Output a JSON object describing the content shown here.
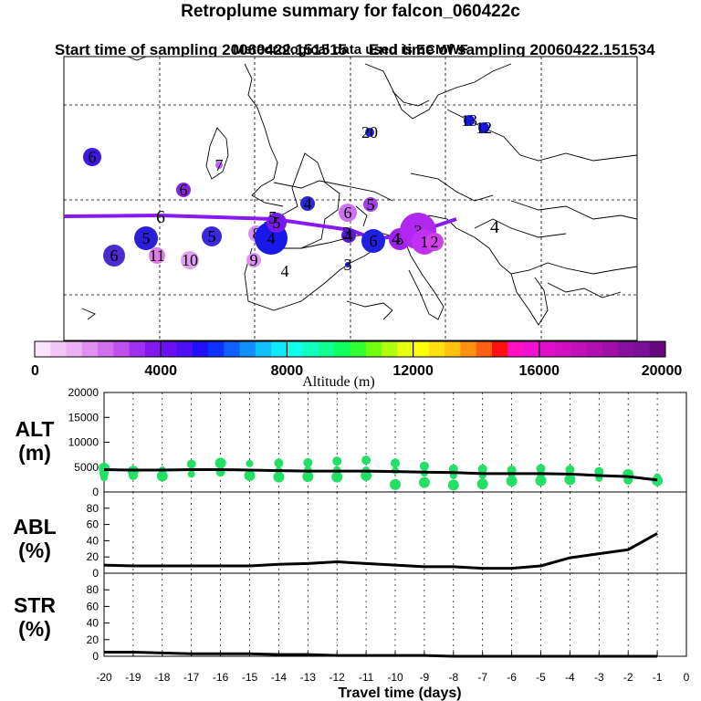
{
  "title": "Retroplume summary for falcon_060422c",
  "subtitle_start": "Start time of sampling 20060422.151515",
  "subtitle_end": "End time of sampling 20060422.151534",
  "subtitle_met": "Meteorological data used is ECMWF",
  "map": {
    "labels": [
      {
        "t": "6",
        "c": "#3d16e0"
      },
      {
        "t": "7",
        "c": "#c060ff"
      },
      {
        "t": "6",
        "c": "#8a20e0"
      },
      {
        "t": "6",
        "c": "#4b2ad0"
      },
      {
        "t": "5",
        "c": "#2a20d8"
      },
      {
        "t": "5",
        "c": "#3b28dc"
      },
      {
        "t": "11",
        "c": "#e07ae8"
      },
      {
        "t": "10",
        "c": "#e0a0f0"
      },
      {
        "t": "8",
        "c": "#d890f0"
      },
      {
        "t": "9",
        "c": "#e090f0"
      },
      {
        "t": "4",
        "c": "#1818e8"
      },
      {
        "t": "5",
        "c": "#7a18f0"
      },
      {
        "t": "4",
        "c": "#2828d8"
      },
      {
        "t": "6",
        "c": "#d070f0"
      },
      {
        "t": "5",
        "c": "#a040e0"
      },
      {
        "t": "6",
        "c": "#2020e0"
      },
      {
        "t": "4",
        "c": "#5a18d8"
      },
      {
        "t": "3",
        "c": "#2020d0"
      },
      {
        "t": "3",
        "c": "#a020f0"
      },
      {
        "t": "3",
        "c": "#b028f0"
      },
      {
        "t": "1",
        "c": "#c030f0"
      },
      {
        "t": "2",
        "c": "#d040e8"
      },
      {
        "t": "4",
        "c": "#ffffff"
      },
      {
        "t": "20",
        "c": "#2020d0"
      },
      {
        "t": "13",
        "c": "#1818e0"
      },
      {
        "t": "12",
        "c": "#1818e0"
      }
    ],
    "plain_labels": [
      "6",
      "5",
      "4",
      "3",
      "4"
    ]
  },
  "colorbar": {
    "ticks": [
      "0",
      "4000",
      "8000",
      "12000",
      "16000",
      "20000"
    ],
    "xlabel": "Altitude (m)",
    "colors": [
      "#fbe3fb",
      "#f3c8f6",
      "#eab0f2",
      "#e090f0",
      "#d070ee",
      "#c050ec",
      "#a030f0",
      "#8418f0",
      "#6a10f0",
      "#4c10f4",
      "#2010f8",
      "#1030ff",
      "#1060ff",
      "#1090ff",
      "#10c0ff",
      "#10e8ff",
      "#10ffe8",
      "#10ffc0",
      "#10ff90",
      "#10ff60",
      "#30ff30",
      "#70ff10",
      "#b0ff10",
      "#e8ff10",
      "#ffff10",
      "#ffe010",
      "#ffc010",
      "#ff9010",
      "#ff6010",
      "#ff1010",
      "#ff10c0",
      "#f010d0",
      "#e010c8",
      "#d010c0",
      "#c010b8",
      "#b010b0",
      "#a010a8",
      "#8810a0",
      "#781098",
      "#680880"
    ]
  },
  "chart_data": [
    {
      "type": "line",
      "panel_label": "ALT\n(m)",
      "x": [
        -20,
        -19,
        -18,
        -17,
        -16,
        -15,
        -14,
        -13,
        -12,
        -11,
        -10,
        -9,
        -8,
        -7,
        -6,
        -5,
        -4,
        -3,
        -2,
        -1
      ],
      "y": [
        4500,
        4400,
        4400,
        4500,
        4500,
        4400,
        4300,
        4200,
        4200,
        4200,
        4100,
        4000,
        3900,
        3700,
        3700,
        3700,
        3600,
        3300,
        3100,
        2400
      ],
      "ylim": [
        0,
        20000
      ],
      "yticks": [
        "0",
        "5000",
        "10000",
        "15000",
        "20000"
      ],
      "plume_points": [
        [
          -20,
          4800
        ],
        [
          -20,
          3700
        ],
        [
          -20,
          2900
        ],
        [
          -19,
          4200
        ],
        [
          -19,
          3300
        ],
        [
          -18,
          4400
        ],
        [
          -18,
          3200
        ],
        [
          -17,
          5600
        ],
        [
          -17,
          3600
        ],
        [
          -16,
          5800
        ],
        [
          -16,
          4000
        ],
        [
          -15,
          5700
        ],
        [
          -15,
          3300
        ],
        [
          -14,
          5800
        ],
        [
          -14,
          4300
        ],
        [
          -14,
          3000
        ],
        [
          -13,
          5900
        ],
        [
          -13,
          4500
        ],
        [
          -13,
          3100
        ],
        [
          -12,
          6200
        ],
        [
          -12,
          4500
        ],
        [
          -12,
          3000
        ],
        [
          -11,
          6400
        ],
        [
          -11,
          4400
        ],
        [
          -11,
          3300
        ],
        [
          -10,
          5800
        ],
        [
          -10,
          4300
        ],
        [
          -10,
          1500
        ],
        [
          -9,
          5200
        ],
        [
          -9,
          3800
        ],
        [
          -9,
          1900
        ],
        [
          -8,
          4600
        ],
        [
          -8,
          3300
        ],
        [
          -8,
          1400
        ],
        [
          -7,
          4600
        ],
        [
          -7,
          3300
        ],
        [
          -7,
          1600
        ],
        [
          -6,
          4400
        ],
        [
          -6,
          3500
        ],
        [
          -6,
          2200
        ],
        [
          -5,
          4700
        ],
        [
          -5,
          3300
        ],
        [
          -5,
          2300
        ],
        [
          -4,
          4500
        ],
        [
          -4,
          3000
        ],
        [
          -4,
          2500
        ],
        [
          -3,
          4100
        ],
        [
          -3,
          2800
        ],
        [
          -2,
          3500
        ],
        [
          -2,
          2400
        ],
        [
          -1,
          3000
        ],
        [
          -1,
          2300
        ]
      ]
    },
    {
      "type": "line",
      "panel_label": "ABL\n(%)",
      "x": [
        -20,
        -19,
        -18,
        -17,
        -16,
        -15,
        -14,
        -13,
        -12,
        -11,
        -10,
        -9,
        -8,
        -7,
        -6,
        -5,
        -4,
        -3,
        -2,
        -1
      ],
      "y": [
        10,
        9,
        9,
        9,
        9,
        9,
        11,
        12,
        14,
        12,
        10,
        8,
        8,
        6,
        6,
        9,
        19,
        24,
        29,
        49
      ],
      "ylim": [
        0,
        100
      ],
      "yticks": [
        "0",
        "20",
        "40",
        "60",
        "80"
      ]
    },
    {
      "type": "line",
      "panel_label": "STR\n(%)",
      "x": [
        -20,
        -19,
        -18,
        -17,
        -16,
        -15,
        -14,
        -13,
        -12,
        -11,
        -10,
        -9,
        -8,
        -7,
        -6,
        -5,
        -4,
        -3,
        -2,
        -1
      ],
      "y": [
        5,
        5,
        4,
        3,
        3,
        3,
        2,
        2,
        1,
        1,
        1,
        1,
        0,
        0,
        0,
        0,
        0,
        0,
        0,
        0
      ],
      "ylim": [
        0,
        100
      ],
      "yticks": [
        "0",
        "20",
        "40",
        "60",
        "80"
      ],
      "xlabel": "Travel time (days)",
      "xticks": [
        "-20",
        "-19",
        "-18",
        "-17",
        "-16",
        "-15",
        "-14",
        "-13",
        "-12",
        "-11",
        "-10",
        "-9",
        "-8",
        "-7",
        "-6",
        "-5",
        "-4",
        "-3",
        "-2",
        "-1",
        "0"
      ]
    }
  ]
}
